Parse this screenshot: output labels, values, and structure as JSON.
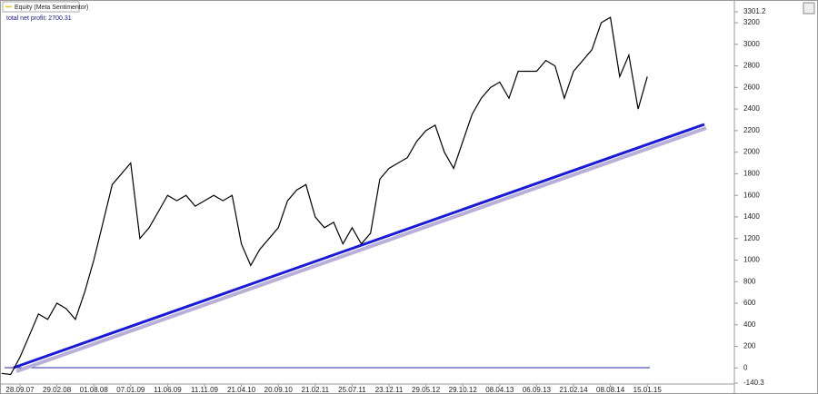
{
  "chart_data": {
    "type": "line",
    "annotations": [
      "total net profit: 2700.31"
    ],
    "categories": [
      null,
      null,
      "28.09.07",
      null,
      null,
      null,
      "29.02.08",
      null,
      null,
      null,
      "01.08.08",
      null,
      null,
      null,
      "07.01.09",
      null,
      null,
      null,
      "11.06.09",
      null,
      null,
      null,
      "11.11.09",
      null,
      null,
      null,
      "21.04.10",
      null,
      null,
      null,
      "20.09.10",
      null,
      null,
      null,
      "21.02.11",
      null,
      null,
      null,
      "25.07.11",
      null,
      null,
      null,
      "23.12.11",
      null,
      null,
      null,
      "29.05.12",
      null,
      null,
      null,
      "29.10.12",
      null,
      null,
      null,
      "08.04.13",
      null,
      null,
      null,
      "06.09.13",
      null,
      null,
      null,
      "21.02.14",
      null,
      null,
      null,
      "08.08.14",
      null,
      null,
      null,
      "15.01.15"
    ],
    "series": [
      {
        "name": "Equity (Meta Sentimentor)",
        "color": "#000000",
        "legend_color": "#e6c619",
        "values": [
          -50,
          -60,
          100,
          300,
          500,
          450,
          600,
          550,
          450,
          700,
          1000,
          1350,
          1700,
          1800,
          1900,
          1200,
          1300,
          1450,
          1600,
          1550,
          1600,
          1500,
          1550,
          1600,
          1550,
          1600,
          1150,
          950,
          1100,
          1200,
          1300,
          1550,
          1650,
          1700,
          1400,
          1300,
          1350,
          1150,
          1300,
          1150,
          1250,
          1750,
          1850,
          1900,
          1950,
          2100,
          2200,
          2250,
          2000,
          1850,
          2100,
          2350,
          2500,
          2600,
          2650,
          2500,
          2750,
          2750,
          2750,
          2850,
          2800,
          2500,
          2750,
          2850,
          2950,
          3200,
          3250,
          2700,
          2900,
          2400,
          2700
        ]
      }
    ],
    "ylim": [
      -140.3,
      3301.2
    ],
    "yticks": [
      -140.3,
      0,
      200,
      400,
      600,
      800,
      1000,
      1200,
      1400,
      1600,
      1800,
      2000,
      2200,
      2400,
      2600,
      2800,
      3000,
      3200,
      3301.2
    ],
    "grid": false
  }
}
